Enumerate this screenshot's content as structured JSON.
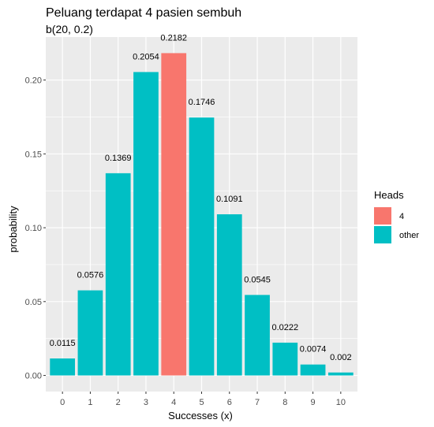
{
  "chart_data": {
    "type": "bar",
    "title": "Peluang terdapat 4 pasien sembuh",
    "subtitle": "b(20, 0.2)",
    "xlabel": "Successes (x)",
    "ylabel": "probability",
    "categories": [
      "0",
      "1",
      "2",
      "3",
      "4",
      "5",
      "6",
      "7",
      "8",
      "9",
      "10"
    ],
    "values": [
      0.0115,
      0.0576,
      0.1369,
      0.2054,
      0.2182,
      0.1746,
      0.1091,
      0.0545,
      0.0222,
      0.0074,
      0.002
    ],
    "value_labels": [
      "0.0115",
      "0.0576",
      "0.1369",
      "0.2054",
      "0.2182",
      "0.1746",
      "0.1091",
      "0.0545",
      "0.0222",
      "0.0074",
      "0.002"
    ],
    "groups": [
      "other",
      "other",
      "other",
      "other",
      "4",
      "other",
      "other",
      "other",
      "other",
      "other",
      "other"
    ],
    "yticks": [
      0.0,
      0.05,
      0.1,
      0.15,
      0.2
    ],
    "ytick_labels": [
      "0.00",
      "0.05",
      "0.10",
      "0.15",
      "0.20"
    ],
    "ylim": [
      -0.0109,
      0.2291
    ],
    "grid": true,
    "legend": {
      "title": "Heads",
      "position": "right",
      "entries": [
        {
          "label": "4",
          "color": "#F8766D"
        },
        {
          "label": "other",
          "color": "#00BFC4"
        }
      ]
    },
    "colors": {
      "4": "#F8766D",
      "other": "#00BFC4",
      "panel": "#EBEBEB",
      "grid": "#FFFFFF"
    }
  }
}
